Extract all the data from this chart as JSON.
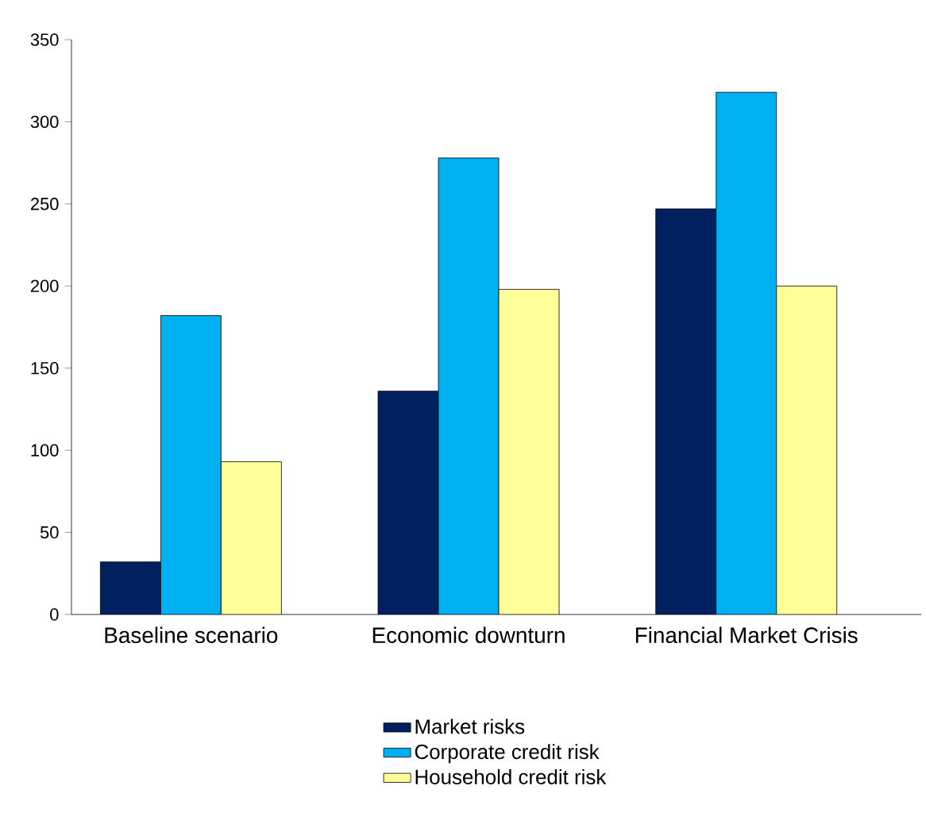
{
  "chart_data": {
    "type": "bar",
    "categories": [
      "Baseline scenario",
      "Economic downturn",
      "Financial Market Crisis"
    ],
    "series": [
      {
        "name": "Market risks",
        "color": "#002060",
        "values": [
          32,
          136,
          247
        ]
      },
      {
        "name": "Corporate credit risk",
        "color": "#00b0f0",
        "values": [
          182,
          278,
          318
        ]
      },
      {
        "name": "Household credit risk",
        "color": "#ffff99",
        "values": [
          93,
          198,
          200
        ]
      }
    ],
    "ylim": [
      0,
      350
    ],
    "yticks": [
      0,
      50,
      100,
      150,
      200,
      250,
      300,
      350
    ],
    "grid": false,
    "legend": "bottom"
  }
}
